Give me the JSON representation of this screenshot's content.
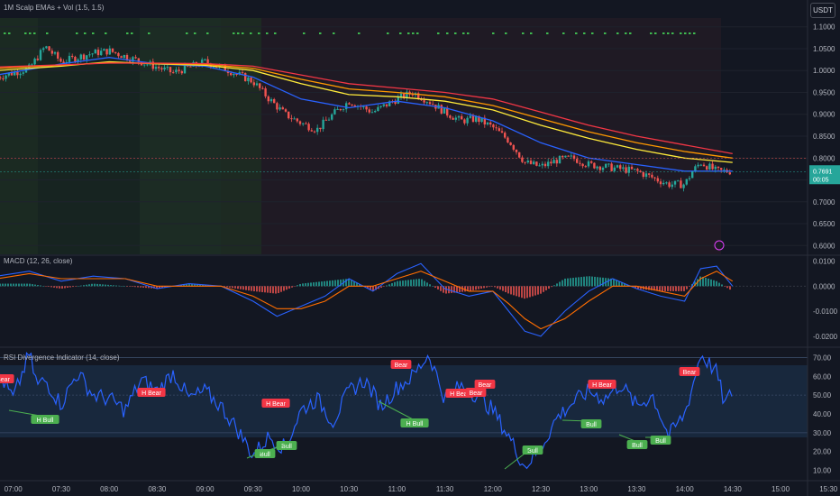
{
  "currency": "USDT",
  "panes": {
    "price": {
      "title": "1M Scalp EMAs + Vol (1.5, 1.5)"
    },
    "macd": {
      "title": "MACD (12, 26, close)"
    },
    "rsi": {
      "title": "RSI Divergence Indicator (14, close)"
    }
  },
  "colors": {
    "background": "#131722",
    "candle_up": "#26a69a",
    "candle_down": "#ef5350",
    "ema_fast": "#2962ff",
    "ema_mid": "#ffeb3b",
    "ema_orange": "#ff9800",
    "ema_slow": "#f23645",
    "macd_line": "#2962ff",
    "signal_line": "#ff6d00",
    "rsi_line": "#2962ff",
    "bull_label": "#4caf50",
    "bear_label": "#f23645"
  },
  "chart_data": [
    {
      "type": "line",
      "pane": "price",
      "title": "1M Scalp EMAs + Vol (1.5, 1.5)",
      "x_ticks": [
        "07:00",
        "07:30",
        "08:00",
        "08:30",
        "09:00",
        "09:30",
        "10:00",
        "10:30",
        "11:00",
        "11:30",
        "12:00",
        "12:30",
        "13:00",
        "13:30",
        "14:00",
        "14:30",
        "15:00",
        "15:30"
      ],
      "y_ticks": [
        "1.1000",
        "1.0500",
        "1.0000",
        "0.9500",
        "0.9000",
        "0.8500",
        "0.8000",
        "0.7500",
        "0.7000",
        "0.6500",
        "0.6000"
      ],
      "ylim": [
        0.58,
        1.12
      ],
      "last_price": "0.7691",
      "countdown": "00:05",
      "series": [
        {
          "name": "Price",
          "x": [
            "06:50",
            "07:10",
            "07:20",
            "07:30",
            "07:50",
            "08:00",
            "08:20",
            "08:40",
            "09:00",
            "09:15",
            "09:30",
            "09:40",
            "09:50",
            "10:00",
            "10:10",
            "10:20",
            "10:30",
            "10:45",
            "11:00",
            "11:10",
            "11:20",
            "11:30",
            "11:40",
            "11:50",
            "12:00",
            "12:10",
            "12:20",
            "12:30",
            "12:40",
            "12:50",
            "13:00",
            "13:10",
            "13:20",
            "13:30",
            "13:40",
            "13:50",
            "14:00",
            "14:05",
            "14:10",
            "14:20",
            "14:30"
          ],
          "values": [
            0.985,
            1.005,
            1.055,
            1.02,
            1.04,
            1.045,
            1.02,
            0.995,
            1.02,
            1.0,
            0.975,
            0.935,
            0.9,
            0.88,
            0.865,
            0.9,
            0.93,
            0.905,
            0.935,
            0.95,
            0.93,
            0.905,
            0.885,
            0.89,
            0.87,
            0.84,
            0.79,
            0.78,
            0.795,
            0.8,
            0.785,
            0.78,
            0.775,
            0.77,
            0.755,
            0.74,
            0.74,
            0.77,
            0.79,
            0.77,
            0.77
          ]
        },
        {
          "name": "EMA fast",
          "x": [
            "06:50",
            "07:30",
            "08:00",
            "08:30",
            "09:00",
            "09:30",
            "10:00",
            "10:30",
            "11:00",
            "11:30",
            "12:00",
            "12:30",
            "13:00",
            "13:30",
            "14:00",
            "14:30"
          ],
          "values": [
            0.99,
            1.015,
            1.03,
            1.015,
            1.01,
            0.985,
            0.935,
            0.915,
            0.93,
            0.915,
            0.885,
            0.835,
            0.8,
            0.785,
            0.77,
            0.77
          ]
        },
        {
          "name": "EMA mid",
          "x": [
            "06:50",
            "07:30",
            "08:00",
            "08:30",
            "09:00",
            "09:30",
            "10:00",
            "10:30",
            "11:00",
            "11:30",
            "12:00",
            "12:30",
            "13:00",
            "13:30",
            "14:00",
            "14:30"
          ],
          "values": [
            1.0,
            1.01,
            1.02,
            1.015,
            1.012,
            1.0,
            0.97,
            0.945,
            0.94,
            0.93,
            0.91,
            0.875,
            0.845,
            0.82,
            0.8,
            0.79
          ]
        },
        {
          "name": "EMA orange",
          "x": [
            "06:50",
            "07:30",
            "08:00",
            "08:30",
            "09:00",
            "09:30",
            "10:00",
            "10:30",
            "11:00",
            "11:30",
            "12:00",
            "12:30",
            "13:00",
            "13:30",
            "14:00",
            "14:30"
          ],
          "values": [
            1.005,
            1.012,
            1.018,
            1.016,
            1.014,
            1.005,
            0.98,
            0.958,
            0.95,
            0.94,
            0.92,
            0.89,
            0.86,
            0.835,
            0.815,
            0.8
          ]
        },
        {
          "name": "EMA slow",
          "x": [
            "06:50",
            "07:30",
            "08:00",
            "08:30",
            "09:00",
            "09:30",
            "10:00",
            "10:30",
            "11:00",
            "11:30",
            "12:00",
            "12:30",
            "13:00",
            "13:30",
            "14:00",
            "14:30"
          ],
          "values": [
            1.008,
            1.013,
            1.017,
            1.017,
            1.016,
            1.01,
            0.99,
            0.97,
            0.96,
            0.95,
            0.935,
            0.905,
            0.875,
            0.85,
            0.83,
            0.81
          ]
        }
      ]
    },
    {
      "type": "line",
      "pane": "macd",
      "title": "MACD (12, 26, close)",
      "y_ticks": [
        "0.0100",
        "0.0000",
        "-0.0100",
        "-0.0200"
      ],
      "ylim": [
        -0.024,
        0.012
      ],
      "series": [
        {
          "name": "MACD",
          "x": [
            "06:50",
            "07:10",
            "07:30",
            "07:50",
            "08:10",
            "08:30",
            "08:50",
            "09:10",
            "09:30",
            "09:45",
            "10:00",
            "10:15",
            "10:30",
            "10:45",
            "11:00",
            "11:15",
            "11:30",
            "11:45",
            "12:00",
            "12:10",
            "12:20",
            "12:30",
            "12:45",
            "13:00",
            "13:15",
            "13:30",
            "13:45",
            "14:00",
            "14:10",
            "14:20",
            "14:30"
          ],
          "values": [
            0.004,
            0.006,
            0.002,
            0.004,
            0.003,
            -0.001,
            0.001,
            0.0,
            -0.006,
            -0.012,
            -0.008,
            -0.004,
            0.003,
            -0.002,
            0.005,
            0.009,
            -0.001,
            -0.004,
            -0.002,
            -0.01,
            -0.018,
            -0.02,
            -0.01,
            -0.002,
            0.003,
            -0.001,
            -0.004,
            -0.006,
            0.007,
            0.008,
            0.0
          ]
        },
        {
          "name": "Signal",
          "x": [
            "06:50",
            "07:10",
            "07:30",
            "07:50",
            "08:10",
            "08:30",
            "08:50",
            "09:10",
            "09:30",
            "09:45",
            "10:00",
            "10:15",
            "10:30",
            "10:45",
            "11:00",
            "11:15",
            "11:30",
            "11:45",
            "12:00",
            "12:10",
            "12:20",
            "12:30",
            "12:45",
            "13:00",
            "13:15",
            "13:30",
            "13:45",
            "14:00",
            "14:10",
            "14:20",
            "14:30"
          ],
          "values": [
            0.003,
            0.005,
            0.003,
            0.003,
            0.003,
            0.0,
            0.0,
            0.0,
            -0.004,
            -0.009,
            -0.009,
            -0.006,
            0.0,
            0.0,
            0.003,
            0.006,
            0.002,
            -0.002,
            -0.002,
            -0.007,
            -0.013,
            -0.017,
            -0.013,
            -0.006,
            0.0,
            0.0,
            -0.002,
            -0.004,
            0.003,
            0.006,
            0.002
          ]
        }
      ]
    },
    {
      "type": "line",
      "pane": "rsi",
      "title": "RSI Divergence Indicator (14, close)",
      "y_ticks": [
        "70.00",
        "60.00",
        "50.00",
        "40.00",
        "30.00",
        "20.00",
        "10.00"
      ],
      "ylim": [
        5,
        75
      ],
      "bands": [
        30,
        50,
        70
      ],
      "series": [
        {
          "name": "RSI",
          "x": [
            "06:50",
            "07:00",
            "07:10",
            "07:15",
            "07:20",
            "07:30",
            "07:40",
            "07:50",
            "08:00",
            "08:10",
            "08:20",
            "08:30",
            "08:40",
            "08:50",
            "09:00",
            "09:10",
            "09:20",
            "09:30",
            "09:40",
            "09:50",
            "10:00",
            "10:10",
            "10:20",
            "10:30",
            "10:40",
            "10:50",
            "11:00",
            "11:10",
            "11:20",
            "11:30",
            "11:40",
            "11:50",
            "12:00",
            "12:10",
            "12:20",
            "12:30",
            "12:40",
            "12:50",
            "13:00",
            "13:10",
            "13:20",
            "13:30",
            "13:40",
            "13:50",
            "14:00",
            "14:05",
            "14:10",
            "14:20",
            "14:25",
            "14:30"
          ],
          "values": [
            63,
            48,
            72,
            55,
            58,
            45,
            62,
            50,
            48,
            42,
            58,
            52,
            62,
            48,
            52,
            44,
            32,
            18,
            28,
            22,
            42,
            48,
            36,
            52,
            58,
            44,
            54,
            60,
            72,
            48,
            55,
            50,
            42,
            28,
            12,
            22,
            38,
            46,
            52,
            48,
            56,
            44,
            50,
            28,
            40,
            55,
            72,
            62,
            45,
            52
          ]
        }
      ],
      "annotations": [
        "H Bear",
        "H Bull",
        "H Bear",
        "H Bear",
        "Bull",
        "Bull",
        "Bear",
        "H Bull",
        "H Bear",
        "Bear",
        "Bear",
        "Bull",
        "H Bear",
        "Bull",
        "Bull",
        "Bull",
        "Bear"
      ]
    }
  ]
}
